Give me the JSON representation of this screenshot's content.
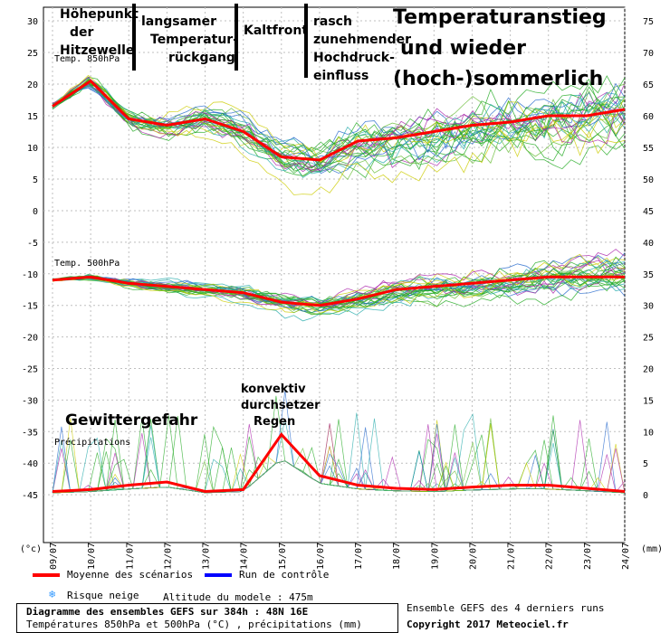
{
  "annotations": {
    "hoehepunkt": [
      "Höhepunkt",
      "der",
      "Hitzewelle"
    ],
    "langsamer": [
      "langsamer",
      "Temperatur-",
      "rückgang"
    ],
    "kaltfront": [
      "Kaltfront"
    ],
    "rasch": [
      "rasch",
      "zunehmender",
      "Hochdruck-",
      "einfluss"
    ],
    "temperaturanstieg": [
      "Temperaturanstieg",
      "und wieder",
      "(hoch-)sommerlich"
    ],
    "gewitter": [
      "Gewittergefahr"
    ],
    "konvektiv": [
      "konvektiv",
      "durchsetzer",
      "Regen"
    ]
  },
  "legend": {
    "mean_label": "Moyenne des scénarios",
    "control_label": "Run de contrôle",
    "snow_label": "Risque neige",
    "altitude_label": "Altitude du modele : 475m",
    "mean_color": "#ff0000",
    "control_color": "#0000ff",
    "snow_icon": "snowflake-icon"
  },
  "footer": {
    "line1": "Diagramme des ensembles GEFS sur 384h : 48N 16E",
    "line2": "Températures 850hPa et 500hPa (°C) , précipitations (mm)",
    "right1": "Ensemble GEFS des 4 derniers runs",
    "right2": "Copyright 2017 Meteociel.fr"
  },
  "chart_data": {
    "type": "line",
    "panel_labels": [
      "Temp. 850hPa",
      "Temp. 500hPa",
      "Précipitations"
    ],
    "x_tick_labels": [
      "09/07",
      "10/07",
      "11/07",
      "12/07",
      "13/07",
      "14/07",
      "15/07",
      "16/07",
      "17/07",
      "18/07",
      "19/07",
      "20/07",
      "21/07",
      "22/07",
      "23/07",
      "24/07"
    ],
    "left_axis_unit": "(°c)",
    "right_axis_unit": "(mm)",
    "left_ticks_top": [
      30,
      25,
      20,
      15,
      10,
      5,
      0
    ],
    "left_ticks_bottom": [
      -5,
      -10,
      -15,
      -20,
      -25,
      -30,
      -35,
      -40,
      -45
    ],
    "right_ticks_top": [
      75,
      70,
      65,
      60,
      55,
      50,
      45
    ],
    "right_ticks_bottom": [
      40,
      35,
      30,
      25,
      20,
      15,
      10,
      5,
      0
    ],
    "series": [
      {
        "name": "Moyenne des scénarios (850hPa)",
        "x": [
          "09/07",
          "10/07",
          "11/07",
          "12/07",
          "13/07",
          "14/07",
          "15/07",
          "16/07",
          "17/07",
          "18/07",
          "19/07",
          "20/07",
          "21/07",
          "22/07",
          "23/07",
          "24/07"
        ],
        "values": [
          16.5,
          20.5,
          14.5,
          13.5,
          14.5,
          12.5,
          8.5,
          8,
          11,
          11.5,
          12.5,
          13.5,
          14,
          15,
          15,
          16
        ]
      },
      {
        "name": "Moyenne des scénarios (500hPa)",
        "x": [
          "09/07",
          "10/07",
          "11/07",
          "12/07",
          "13/07",
          "14/07",
          "15/07",
          "16/07",
          "17/07",
          "18/07",
          "19/07",
          "20/07",
          "21/07",
          "22/07",
          "23/07",
          "24/07"
        ],
        "values": [
          -11,
          -10.5,
          -11.5,
          -12,
          -12.5,
          -13,
          -14.5,
          -15,
          -14,
          -12.5,
          -12,
          -11.5,
          -11,
          -10.5,
          -10.5,
          -10.5
        ]
      },
      {
        "name": "Moyenne des scénarios (précipitations mm)",
        "x": [
          "09/07",
          "10/07",
          "11/07",
          "12/07",
          "13/07",
          "14/07",
          "15/07",
          "16/07",
          "17/07",
          "18/07",
          "19/07",
          "20/07",
          "21/07",
          "22/07",
          "23/07",
          "24/07"
        ],
        "values": [
          0.5,
          0.8,
          1.5,
          2,
          0.5,
          0.8,
          9.5,
          3,
          1.5,
          1,
          0.8,
          1.2,
          1.5,
          1.5,
          1,
          0.5
        ]
      }
    ],
    "grid": true,
    "legend_placement": "bottom-left"
  }
}
